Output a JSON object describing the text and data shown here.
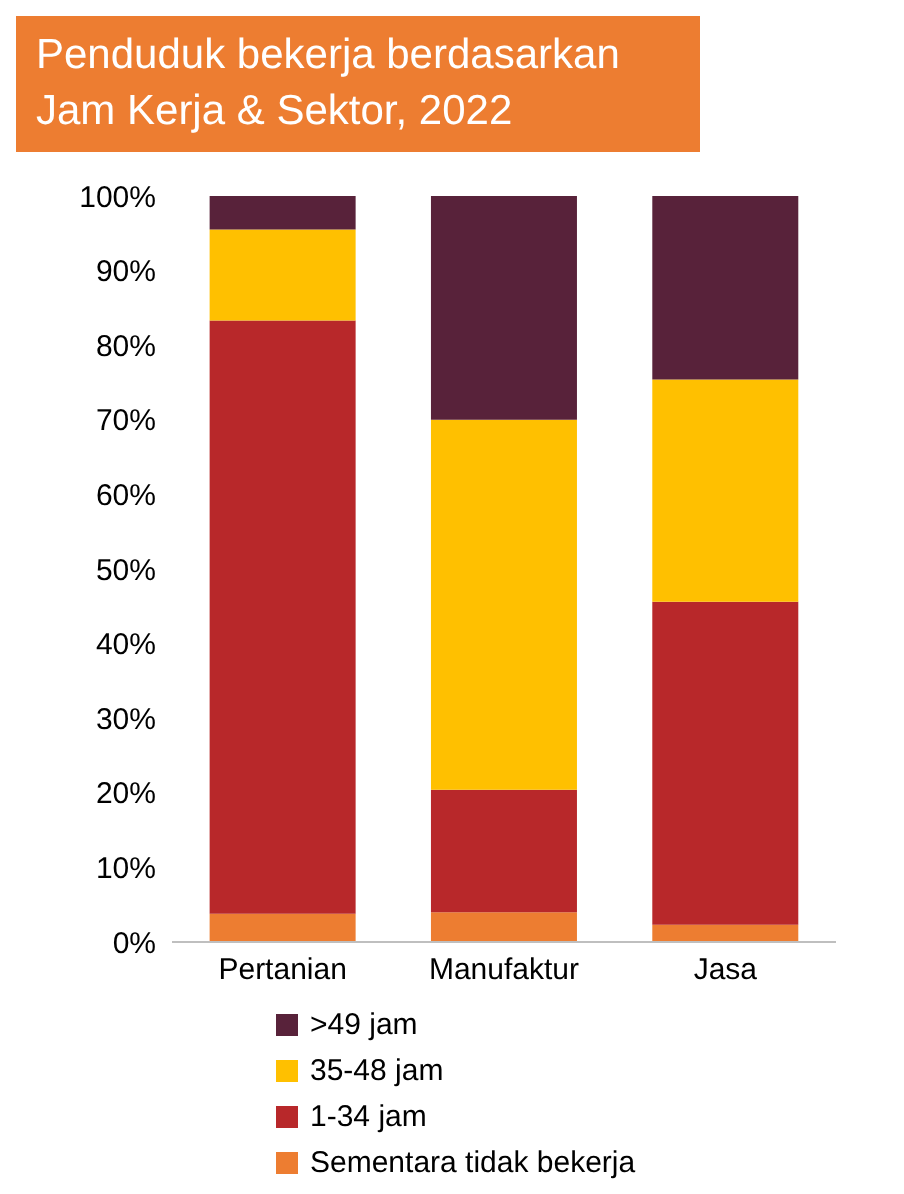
{
  "chart_data": {
    "type": "bar",
    "title": "Penduduk bekerja berdasarkan Jam Kerja & Sektor, 2022",
    "stacked": true,
    "categories": [
      "Pertanian",
      "Manufaktur",
      "Jasa"
    ],
    "series": [
      {
        "name": "Sementara tidak bekerja",
        "color": "#ed7d31",
        "values": [
          3.8,
          4,
          2.3
        ]
      },
      {
        "name": "1-34 jam",
        "color": "#b8282a",
        "values": [
          79.5,
          16.4,
          43.3
        ]
      },
      {
        "name": "35-48 jam",
        "color": "#ffc000",
        "values": [
          12.2,
          49.6,
          29.8
        ]
      },
      {
        "name": ">49 jam",
        "color": "#58223a",
        "values": [
          4.5,
          30,
          24.6
        ]
      }
    ],
    "ylim": [
      0,
      100
    ],
    "yticks": [
      {
        "value": 0,
        "label": "0%"
      },
      {
        "value": 10,
        "label": "10%"
      },
      {
        "value": 20,
        "label": "20%"
      },
      {
        "value": 30,
        "label": "30%"
      },
      {
        "value": 40,
        "label": "40%"
      },
      {
        "value": 50,
        "label": "50%"
      },
      {
        "value": 60,
        "label": "60%"
      },
      {
        "value": 70,
        "label": "70%"
      },
      {
        "value": 80,
        "label": "80%"
      },
      {
        "value": 90,
        "label": "90%"
      },
      {
        "value": 100,
        "label": "100%"
      }
    ],
    "grid": false,
    "legend": "bottom"
  }
}
